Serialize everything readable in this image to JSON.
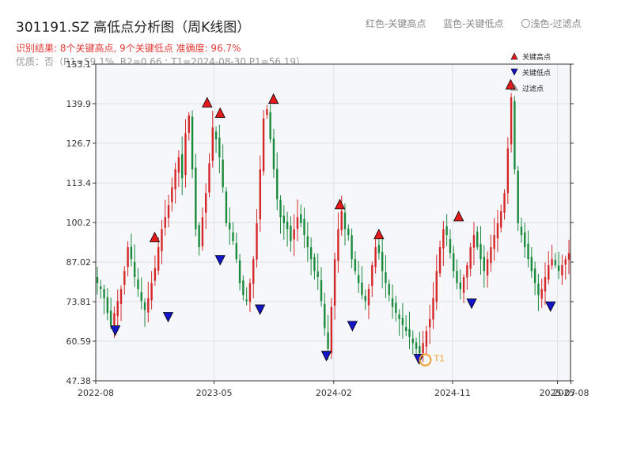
{
  "header": {
    "title": "301191.SZ 高低点分析图（周K线图）",
    "legend_red": "红色-关键高点",
    "legend_blue": "蓝色-关键低点",
    "legend_hollow": "〇浅色-过滤点",
    "result_line": "识别结果: 8个关键高点, 9个关键低点  准确度: 96.7%",
    "quality_line": "优质：否（R1=59.1%, R2=0.66 ; T1=2024-08-30 P1=56.19）"
  },
  "chart_data": {
    "type": "candlestick",
    "title": "301191.SZ 高低点分析图（周K线图）",
    "x_start": "2022-08",
    "x_end": "2025-07",
    "x_ticks": [
      "2022-08",
      "2023-05",
      "2024-02",
      "2024-11",
      "2025-07",
      "2025-08"
    ],
    "y_ticks": [
      "47.38",
      "60.59",
      "73.81",
      "87.02",
      "100.2",
      "113.4",
      "126.7",
      "139.9",
      "153.1"
    ],
    "ylim": [
      47.38,
      153.1
    ],
    "grid": true,
    "legend": {
      "position": "top-right",
      "items": [
        "关键高点",
        "关键低点",
        "过滤点"
      ]
    },
    "up_color": "#d62728",
    "down_color": "#1a8a3c",
    "high_marker_color": "#e41a1c",
    "low_marker_color": "#1515c8",
    "t1_color": "#f0a030",
    "t1_label": "T1",
    "key_highs": [
      {
        "date": "2022-12",
        "price": 93.5
      },
      {
        "date": "2023-04",
        "price": 138.5
      },
      {
        "date": "2023-05",
        "price": 135.0
      },
      {
        "date": "2023-09",
        "price": 139.7
      },
      {
        "date": "2024-02",
        "price": 104.5
      },
      {
        "date": "2024-05",
        "price": 94.5
      },
      {
        "date": "2024-11",
        "price": 100.5
      },
      {
        "date": "2025-03",
        "price": 144.5
      }
    ],
    "key_lows": [
      {
        "date": "2022-09",
        "price": 66.0
      },
      {
        "date": "2023-01",
        "price": 70.5
      },
      {
        "date": "2023-05",
        "price": 89.5
      },
      {
        "date": "2023-08",
        "price": 73.0
      },
      {
        "date": "2024-01",
        "price": 57.5
      },
      {
        "date": "2024-03",
        "price": 67.5
      },
      {
        "date": "2024-08",
        "price": 56.5
      },
      {
        "date": "2024-12",
        "price": 75.0
      },
      {
        "date": "2025-06",
        "price": 74.0
      }
    ],
    "t1": {
      "date": "2024-08-30",
      "price": 56.19
    },
    "weekly_close": [
      80,
      78,
      75,
      70,
      66,
      70,
      74,
      78,
      84,
      92,
      88,
      82,
      78,
      74,
      71,
      75,
      80,
      85,
      92,
      98,
      102,
      106,
      112,
      118,
      122,
      115,
      130,
      136,
      118,
      98,
      92,
      102,
      110,
      120,
      132,
      128,
      122,
      112,
      100,
      98,
      94,
      88,
      80,
      76,
      74,
      80,
      88,
      100,
      118,
      135,
      138,
      128,
      118,
      108,
      102,
      100,
      98,
      94,
      98,
      102,
      100,
      96,
      92,
      88,
      84,
      82,
      74,
      65,
      58,
      72,
      88,
      98,
      104,
      98,
      96,
      88,
      84,
      80,
      76,
      74,
      78,
      86,
      92,
      90,
      84,
      80,
      76,
      72,
      70,
      68,
      66,
      64,
      62,
      60,
      58,
      56.5,
      60,
      64,
      68,
      75,
      84,
      92,
      98,
      96,
      90,
      84,
      80,
      78,
      82,
      86,
      92,
      96,
      92,
      88,
      84,
      88,
      92,
      96,
      100,
      104,
      110,
      125,
      142,
      118,
      100,
      96,
      92,
      88,
      84,
      80,
      76,
      78,
      82,
      86,
      88,
      86,
      84,
      86,
      88,
      90
    ]
  },
  "legend_box": {
    "high_label": "关键高点",
    "low_label": "关键低点",
    "filter_label": "过滤点"
  }
}
